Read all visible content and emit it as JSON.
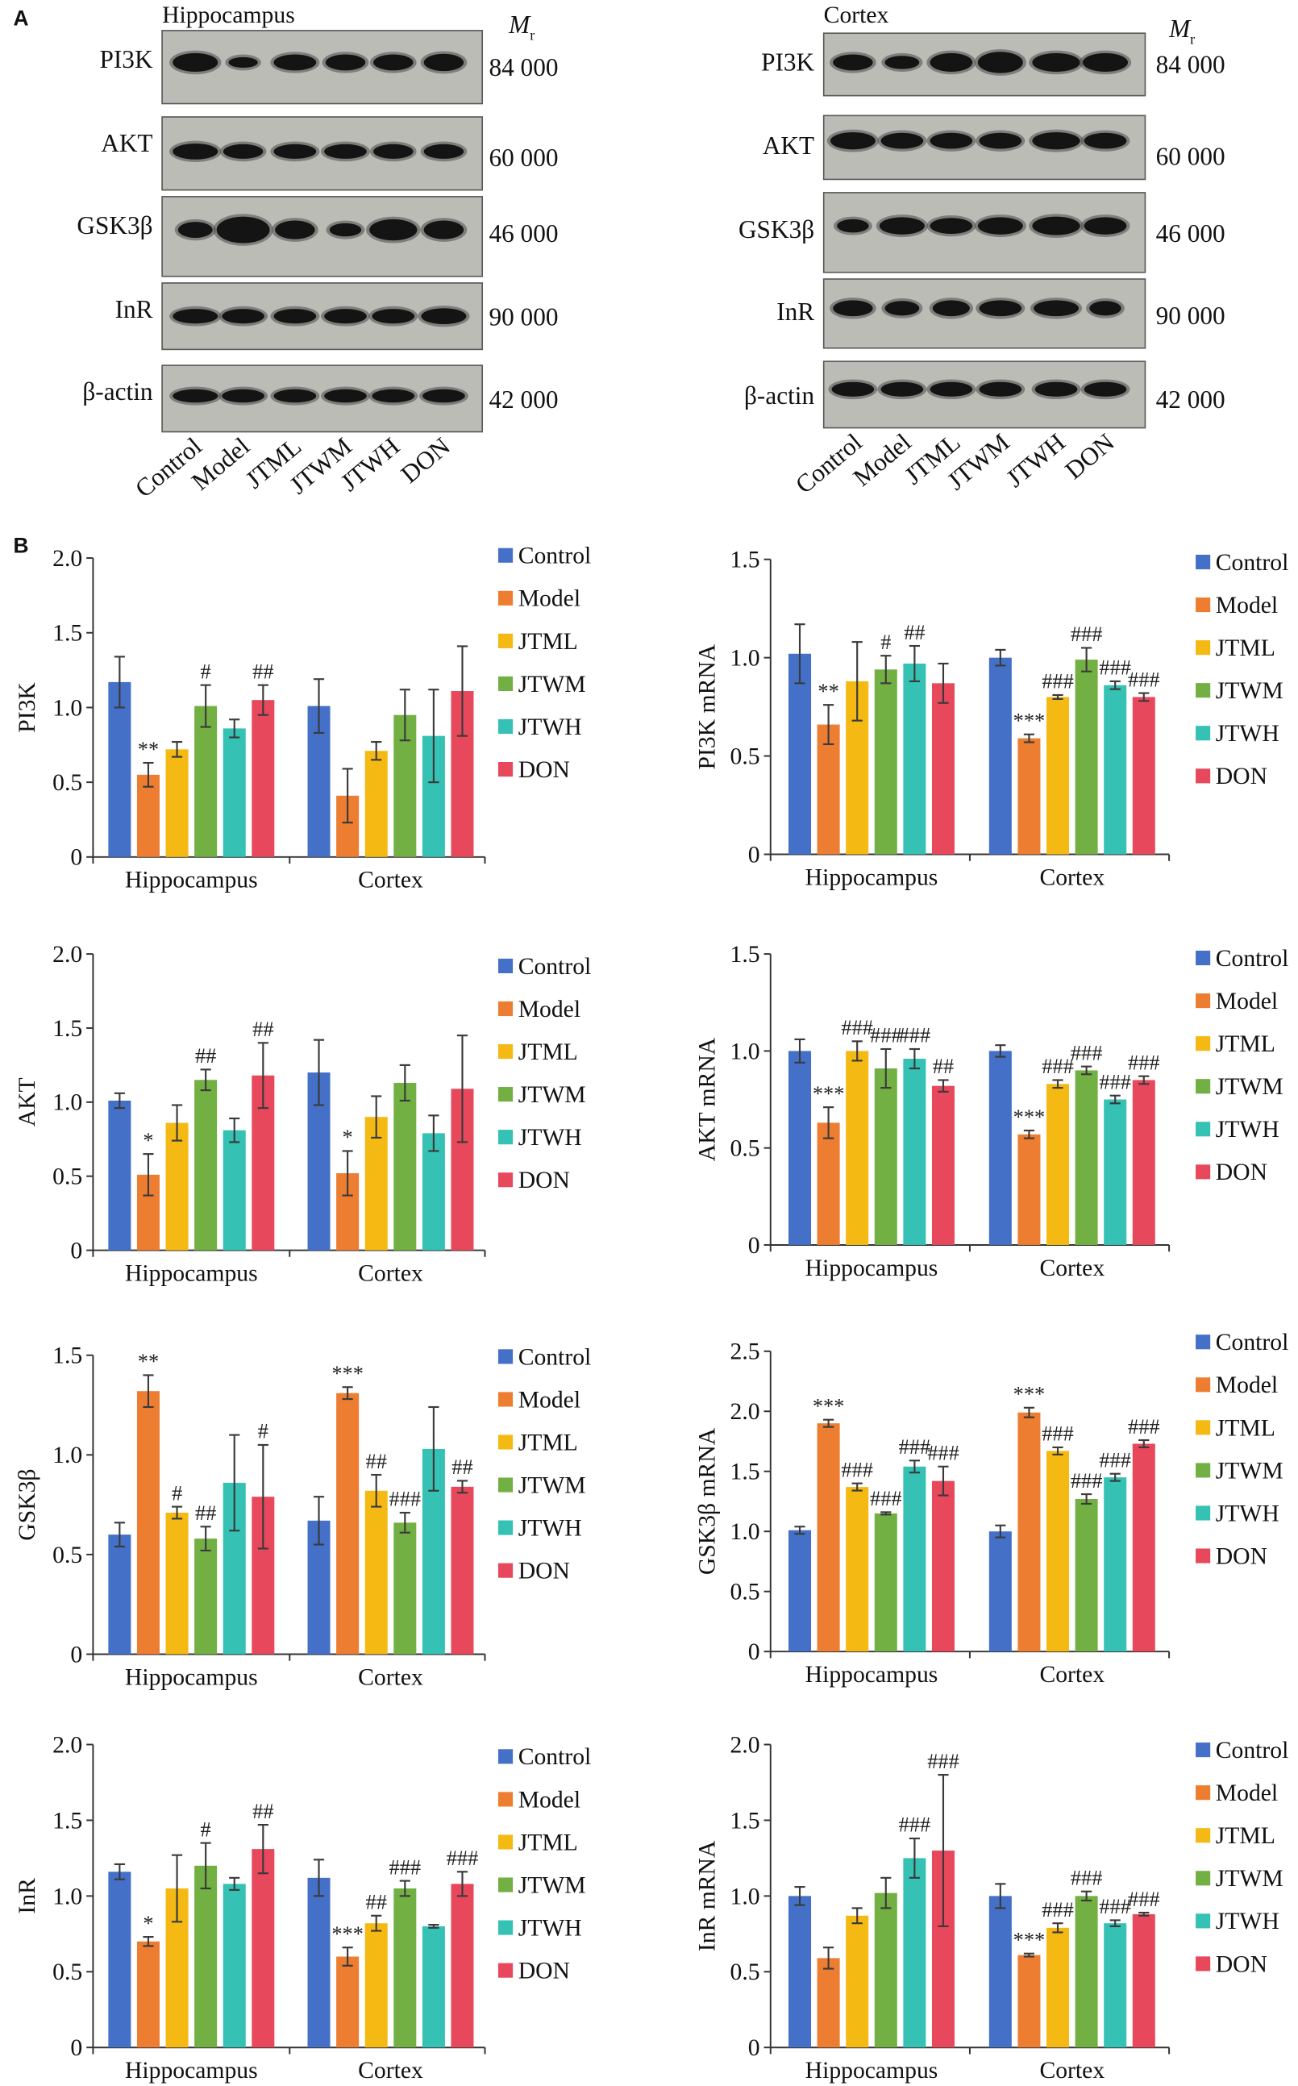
{
  "figure": {
    "panel_a_label": "A",
    "panel_b_label": "B"
  },
  "blots": {
    "mr_symbol": "M",
    "mr_subscript": "r",
    "lanes": [
      "Control",
      "Model",
      "JTML",
      "JTWM",
      "JTWH",
      "DON"
    ],
    "panels": [
      {
        "title": "Hippocampus",
        "rows": [
          {
            "protein": "PI3K",
            "mr": "84 000"
          },
          {
            "protein": "AKT",
            "mr": "60 000"
          },
          {
            "protein": "GSK3β",
            "mr": "46 000"
          },
          {
            "protein": "InR",
            "mr": "90 000"
          },
          {
            "protein": "β-actin",
            "mr": "42 000"
          }
        ]
      },
      {
        "title": "Cortex",
        "rows": [
          {
            "protein": "PI3K",
            "mr": "84 000"
          },
          {
            "protein": "AKT",
            "mr": "60 000"
          },
          {
            "protein": "GSK3β",
            "mr": "46 000"
          },
          {
            "protein": "InR",
            "mr": "90 000"
          },
          {
            "protein": "β-actin",
            "mr": "42 000"
          }
        ]
      }
    ]
  },
  "series_colors": {
    "Control": "#4470C8",
    "Model": "#ED7D31",
    "JTML": "#F5B914",
    "JTWM": "#72B043",
    "JTWH": "#35C1B3",
    "DON": "#E8485C"
  },
  "chart_data": [
    {
      "type": "bar",
      "ylabel": "PI3K",
      "categories": [
        "Hippocampus",
        "Cortex"
      ],
      "ylim": [
        0,
        2.0
      ],
      "yticks": [
        "0",
        "0.5",
        "1.0",
        "1.5",
        "2.0"
      ],
      "legend": "right",
      "error_bars": true,
      "series": [
        {
          "name": "Control",
          "values": [
            1.17,
            1.01
          ],
          "errors": [
            0.17,
            0.18
          ],
          "marks": [
            "",
            ""
          ]
        },
        {
          "name": "Model",
          "values": [
            0.55,
            0.41
          ],
          "errors": [
            0.08,
            0.18
          ],
          "marks": [
            "**",
            ""
          ]
        },
        {
          "name": "JTML",
          "values": [
            0.72,
            0.71
          ],
          "errors": [
            0.05,
            0.06
          ],
          "marks": [
            "",
            ""
          ]
        },
        {
          "name": "JTWM",
          "values": [
            1.01,
            0.95
          ],
          "errors": [
            0.14,
            0.17
          ],
          "marks": [
            "#",
            ""
          ]
        },
        {
          "name": "JTWH",
          "values": [
            0.86,
            0.81
          ],
          "errors": [
            0.06,
            0.31
          ],
          "marks": [
            "",
            ""
          ]
        },
        {
          "name": "DON",
          "values": [
            1.05,
            1.11
          ],
          "errors": [
            0.1,
            0.3
          ],
          "marks": [
            "##",
            ""
          ]
        }
      ]
    },
    {
      "type": "bar",
      "ylabel": "PI3K mRNA",
      "categories": [
        "Hippocampus",
        "Cortex"
      ],
      "ylim": [
        0,
        1.5
      ],
      "yticks": [
        "0",
        "0.5",
        "1.0",
        "1.5"
      ],
      "legend": "right",
      "error_bars": true,
      "series": [
        {
          "name": "Control",
          "values": [
            1.02,
            1.0
          ],
          "errors": [
            0.15,
            0.04
          ],
          "marks": [
            "",
            ""
          ]
        },
        {
          "name": "Model",
          "values": [
            0.66,
            0.59
          ],
          "errors": [
            0.1,
            0.02
          ],
          "marks": [
            "**",
            "***"
          ]
        },
        {
          "name": "JTML",
          "values": [
            0.88,
            0.8
          ],
          "errors": [
            0.2,
            0.01
          ],
          "marks": [
            "",
            "###"
          ]
        },
        {
          "name": "JTWM",
          "values": [
            0.94,
            0.99
          ],
          "errors": [
            0.07,
            0.06
          ],
          "marks": [
            "#",
            "###"
          ]
        },
        {
          "name": "JTWH",
          "values": [
            0.97,
            0.86
          ],
          "errors": [
            0.09,
            0.02
          ],
          "marks": [
            "##",
            "###"
          ]
        },
        {
          "name": "DON",
          "values": [
            0.87,
            0.8
          ],
          "errors": [
            0.1,
            0.02
          ],
          "marks": [
            "",
            "###"
          ]
        }
      ]
    },
    {
      "type": "bar",
      "ylabel": "AKT",
      "categories": [
        "Hippocampus",
        "Cortex"
      ],
      "ylim": [
        0,
        2.0
      ],
      "yticks": [
        "0",
        "0.5",
        "1.0",
        "1.5",
        "2.0"
      ],
      "legend": "right",
      "error_bars": true,
      "series": [
        {
          "name": "Control",
          "values": [
            1.01,
            1.2
          ],
          "errors": [
            0.05,
            0.22
          ],
          "marks": [
            "",
            ""
          ]
        },
        {
          "name": "Model",
          "values": [
            0.51,
            0.52
          ],
          "errors": [
            0.14,
            0.15
          ],
          "marks": [
            "*",
            "*"
          ]
        },
        {
          "name": "JTML",
          "values": [
            0.86,
            0.9
          ],
          "errors": [
            0.12,
            0.14
          ],
          "marks": [
            "",
            ""
          ]
        },
        {
          "name": "JTWM",
          "values": [
            1.15,
            1.13
          ],
          "errors": [
            0.07,
            0.12
          ],
          "marks": [
            "##",
            ""
          ]
        },
        {
          "name": "JTWH",
          "values": [
            0.81,
            0.79
          ],
          "errors": [
            0.08,
            0.12
          ],
          "marks": [
            "",
            ""
          ]
        },
        {
          "name": "DON",
          "values": [
            1.18,
            1.09
          ],
          "errors": [
            0.22,
            0.36
          ],
          "marks": [
            "##",
            ""
          ]
        }
      ]
    },
    {
      "type": "bar",
      "ylabel": "AKT mRNA",
      "categories": [
        "Hippocampus",
        "Cortex"
      ],
      "ylim": [
        0,
        1.5
      ],
      "yticks": [
        "0",
        "0.5",
        "1.0",
        "1.5"
      ],
      "legend": "right",
      "error_bars": true,
      "series": [
        {
          "name": "Control",
          "values": [
            1.0,
            1.0
          ],
          "errors": [
            0.06,
            0.03
          ],
          "marks": [
            "",
            ""
          ]
        },
        {
          "name": "Model",
          "values": [
            0.63,
            0.57
          ],
          "errors": [
            0.08,
            0.02
          ],
          "marks": [
            "***",
            "***"
          ]
        },
        {
          "name": "JTML",
          "values": [
            1.0,
            0.83
          ],
          "errors": [
            0.05,
            0.02
          ],
          "marks": [
            "###",
            "###"
          ]
        },
        {
          "name": "JTWM",
          "values": [
            0.91,
            0.9
          ],
          "errors": [
            0.1,
            0.02
          ],
          "marks": [
            "###",
            "###"
          ]
        },
        {
          "name": "JTWH",
          "values": [
            0.96,
            0.75
          ],
          "errors": [
            0.05,
            0.02
          ],
          "marks": [
            "###",
            "###"
          ]
        },
        {
          "name": "DON",
          "values": [
            0.82,
            0.85
          ],
          "errors": [
            0.03,
            0.02
          ],
          "marks": [
            "##",
            "###"
          ]
        }
      ]
    },
    {
      "type": "bar",
      "ylabel": "GSK3β",
      "categories": [
        "Hippocampus",
        "Cortex"
      ],
      "ylim": [
        0,
        1.5
      ],
      "yticks": [
        "0",
        "0.5",
        "1.0",
        "1.5"
      ],
      "legend": "right",
      "error_bars": true,
      "series": [
        {
          "name": "Control",
          "values": [
            0.6,
            0.67
          ],
          "errors": [
            0.06,
            0.12
          ],
          "marks": [
            "",
            ""
          ]
        },
        {
          "name": "Model",
          "values": [
            1.32,
            1.31
          ],
          "errors": [
            0.08,
            0.03
          ],
          "marks": [
            "**",
            "***"
          ]
        },
        {
          "name": "JTML",
          "values": [
            0.71,
            0.82
          ],
          "errors": [
            0.03,
            0.08
          ],
          "marks": [
            "#",
            "##"
          ]
        },
        {
          "name": "JTWM",
          "values": [
            0.58,
            0.66
          ],
          "errors": [
            0.06,
            0.05
          ],
          "marks": [
            "##",
            "###"
          ]
        },
        {
          "name": "JTWH",
          "values": [
            0.86,
            1.03
          ],
          "errors": [
            0.24,
            0.21
          ],
          "marks": [
            "",
            ""
          ]
        },
        {
          "name": "DON",
          "values": [
            0.79,
            0.84
          ],
          "errors": [
            0.26,
            0.03
          ],
          "marks": [
            "#",
            "##"
          ]
        }
      ]
    },
    {
      "type": "bar",
      "ylabel": "GSK3β mRNA",
      "categories": [
        "Hippocampus",
        "Cortex"
      ],
      "ylim": [
        0,
        2.5
      ],
      "yticks": [
        "0",
        "0.5",
        "1.0",
        "1.5",
        "2.0",
        "2.5"
      ],
      "legend": "right",
      "error_bars": true,
      "series": [
        {
          "name": "Control",
          "values": [
            1.01,
            1.0
          ],
          "errors": [
            0.03,
            0.05
          ],
          "marks": [
            "",
            ""
          ]
        },
        {
          "name": "Model",
          "values": [
            1.9,
            1.99
          ],
          "errors": [
            0.03,
            0.04
          ],
          "marks": [
            "***",
            "***"
          ]
        },
        {
          "name": "JTML",
          "values": [
            1.37,
            1.67
          ],
          "errors": [
            0.03,
            0.03
          ],
          "marks": [
            "###",
            "###"
          ]
        },
        {
          "name": "JTWM",
          "values": [
            1.15,
            1.27
          ],
          "errors": [
            0.01,
            0.04
          ],
          "marks": [
            "###",
            "###"
          ]
        },
        {
          "name": "JTWH",
          "values": [
            1.54,
            1.45
          ],
          "errors": [
            0.05,
            0.03
          ],
          "marks": [
            "###",
            "###"
          ]
        },
        {
          "name": "DON",
          "values": [
            1.42,
            1.73
          ],
          "errors": [
            0.12,
            0.03
          ],
          "marks": [
            "###",
            "###"
          ]
        }
      ]
    },
    {
      "type": "bar",
      "ylabel": "InR",
      "categories": [
        "Hippocampus",
        "Cortex"
      ],
      "ylim": [
        0,
        2.0
      ],
      "yticks": [
        "0",
        "0.5",
        "1.0",
        "1.5",
        "2.0"
      ],
      "legend": "right",
      "error_bars": true,
      "series": [
        {
          "name": "Control",
          "values": [
            1.16,
            1.12
          ],
          "errors": [
            0.05,
            0.12
          ],
          "marks": [
            "",
            ""
          ]
        },
        {
          "name": "Model",
          "values": [
            0.7,
            0.6
          ],
          "errors": [
            0.03,
            0.06
          ],
          "marks": [
            "*",
            "***"
          ]
        },
        {
          "name": "JTML",
          "values": [
            1.05,
            0.82
          ],
          "errors": [
            0.22,
            0.05
          ],
          "marks": [
            "",
            "##"
          ]
        },
        {
          "name": "JTWM",
          "values": [
            1.2,
            1.05
          ],
          "errors": [
            0.15,
            0.05
          ],
          "marks": [
            "#",
            "###"
          ]
        },
        {
          "name": "JTWH",
          "values": [
            1.08,
            0.8
          ],
          "errors": [
            0.04,
            0.01
          ],
          "marks": [
            "",
            ""
          ]
        },
        {
          "name": "DON",
          "values": [
            1.31,
            1.08
          ],
          "errors": [
            0.16,
            0.08
          ],
          "marks": [
            "##",
            "###"
          ]
        }
      ]
    },
    {
      "type": "bar",
      "ylabel": "InR mRNA",
      "categories": [
        "Hippocampus",
        "Cortex"
      ],
      "ylim": [
        0,
        2.0
      ],
      "yticks": [
        "0",
        "0.5",
        "1.0",
        "1.5",
        "2.0"
      ],
      "legend": "right",
      "error_bars": true,
      "series": [
        {
          "name": "Control",
          "values": [
            1.0,
            1.0
          ],
          "errors": [
            0.06,
            0.08
          ],
          "marks": [
            "",
            ""
          ]
        },
        {
          "name": "Model",
          "values": [
            0.59,
            0.61
          ],
          "errors": [
            0.07,
            0.01
          ],
          "marks": [
            "",
            "***"
          ]
        },
        {
          "name": "JTML",
          "values": [
            0.87,
            0.79
          ],
          "errors": [
            0.05,
            0.03
          ],
          "marks": [
            "",
            "###"
          ]
        },
        {
          "name": "JTWM",
          "values": [
            1.02,
            1.0
          ],
          "errors": [
            0.1,
            0.03
          ],
          "marks": [
            "",
            "###"
          ]
        },
        {
          "name": "JTWH",
          "values": [
            1.25,
            0.82
          ],
          "errors": [
            0.13,
            0.02
          ],
          "marks": [
            "###",
            "###"
          ]
        },
        {
          "name": "DON",
          "values": [
            1.3,
            0.88
          ],
          "errors": [
            0.5,
            0.01
          ],
          "marks": [
            "###",
            "###"
          ]
        }
      ]
    }
  ]
}
